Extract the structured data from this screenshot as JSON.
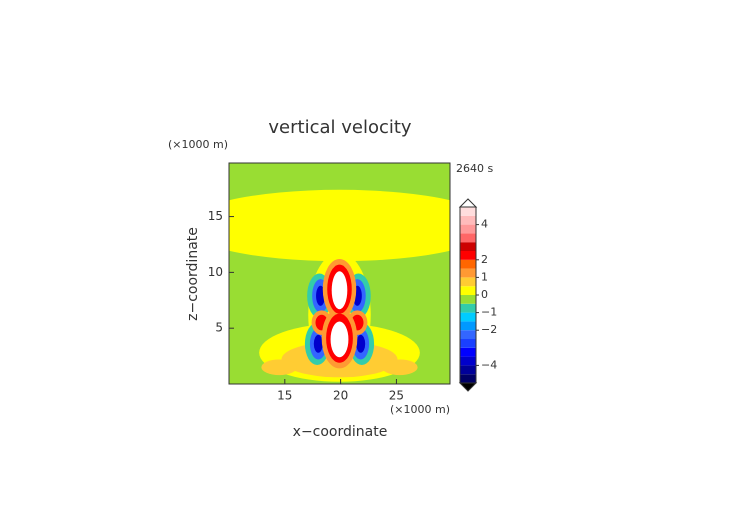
{
  "chart_data": {
    "type": "contour",
    "title": "vertical velocity",
    "xlabel": "x−coordinate",
    "ylabel": "z−coordinate",
    "x_unit": "(×1000 m)",
    "y_unit": "(×1000 m)",
    "time_label": "2640 s",
    "xlim": [
      10,
      29.8
    ],
    "ylim": [
      0,
      19.8
    ],
    "xticks": [
      15,
      20,
      25
    ],
    "yticks": [
      5,
      10,
      15
    ],
    "background_value": -0.25,
    "levels": [
      -5,
      -4.5,
      -4,
      -3.5,
      -3,
      -2.5,
      -2,
      -1.5,
      -1,
      -0.5,
      0,
      0.5,
      1,
      1.5,
      2,
      2.5,
      3,
      3.5,
      4,
      4.5,
      5
    ],
    "colors": [
      "#000066",
      "#000099",
      "#0000cc",
      "#0000ff",
      "#1a40ff",
      "#3366ff",
      "#0099ff",
      "#00ccff",
      "#33ccaa",
      "#99dd33",
      "#ffff00",
      "#ffcc33",
      "#ff9933",
      "#ff6600",
      "#ff0000",
      "#cc0000",
      "#ff6666",
      "#ff9999",
      "#ffbbbb",
      "#ffdddd"
    ],
    "over_color": "#ffffff",
    "under_color": "#000000",
    "colorbar_ticks": [
      {
        "value": -4,
        "label": "−4"
      },
      {
        "value": -2,
        "label": "−2"
      },
      {
        "value": -1,
        "label": "−1"
      },
      0,
      1,
      2,
      4
    ],
    "features": [
      {
        "value": 0.25,
        "x": 19.9,
        "z": 14.2,
        "rx": 14,
        "rz": 3.2
      },
      {
        "value": 0.25,
        "x": 19.9,
        "z": 2.8,
        "rx": 7.2,
        "rz": 2.6
      },
      {
        "value": 0.25,
        "x": 19.9,
        "z": 6.2,
        "rx": 2.8,
        "rz": 5.6
      },
      {
        "value": 0.75,
        "x": 19.9,
        "z": 2.2,
        "rx": 5.2,
        "rz": 1.6
      },
      {
        "value": 0.75,
        "x": 14.5,
        "z": 1.5,
        "rx": 1.6,
        "rz": 0.7
      },
      {
        "value": 0.75,
        "x": 25.3,
        "z": 1.5,
        "rx": 1.6,
        "rz": 0.7
      },
      {
        "value": -0.75,
        "x": 18.1,
        "z": 7.9,
        "rx": 1.1,
        "rz": 2.0
      },
      {
        "value": -0.75,
        "x": 21.6,
        "z": 7.9,
        "rx": 1.1,
        "rz": 2.0
      },
      {
        "value": -0.75,
        "x": 17.9,
        "z": 3.6,
        "rx": 1.1,
        "rz": 1.9
      },
      {
        "value": -0.75,
        "x": 21.9,
        "z": 3.6,
        "rx": 1.1,
        "rz": 1.9
      },
      {
        "value": -2.25,
        "x": 18.2,
        "z": 7.9,
        "rx": 0.75,
        "rz": 1.5
      },
      {
        "value": -2.25,
        "x": 21.5,
        "z": 7.9,
        "rx": 0.75,
        "rz": 1.5
      },
      {
        "value": -2.25,
        "x": 18.0,
        "z": 3.6,
        "rx": 0.75,
        "rz": 1.4
      },
      {
        "value": -2.25,
        "x": 21.8,
        "z": 3.6,
        "rx": 0.75,
        "rz": 1.4
      },
      {
        "value": -3.75,
        "x": 18.2,
        "z": 7.9,
        "rx": 0.4,
        "rz": 0.9
      },
      {
        "value": -3.75,
        "x": 21.5,
        "z": 7.9,
        "rx": 0.4,
        "rz": 0.9
      },
      {
        "value": -3.75,
        "x": 18.0,
        "z": 3.6,
        "rx": 0.4,
        "rz": 0.8
      },
      {
        "value": -3.75,
        "x": 21.8,
        "z": 3.6,
        "rx": 0.4,
        "rz": 0.8
      },
      {
        "value": 1.25,
        "x": 18.3,
        "z": 5.5,
        "rx": 0.9,
        "rz": 1.1
      },
      {
        "value": 1.25,
        "x": 21.5,
        "z": 5.5,
        "rx": 0.9,
        "rz": 1.1
      },
      {
        "value": 2.25,
        "x": 18.3,
        "z": 5.5,
        "rx": 0.55,
        "rz": 0.7
      },
      {
        "value": 2.25,
        "x": 21.5,
        "z": 5.5,
        "rx": 0.55,
        "rz": 0.7
      },
      {
        "value": 1.25,
        "x": 19.9,
        "z": 8.5,
        "rx": 1.5,
        "rz": 2.7
      },
      {
        "value": 1.25,
        "x": 19.9,
        "z": 4.1,
        "rx": 1.6,
        "rz": 2.7
      },
      {
        "value": 2.25,
        "x": 19.9,
        "z": 8.5,
        "rx": 1.1,
        "rz": 2.2
      },
      {
        "value": 2.25,
        "x": 19.9,
        "z": 4.1,
        "rx": 1.2,
        "rz": 2.2
      },
      {
        "value": 5.5,
        "x": 19.9,
        "z": 8.4,
        "rx": 0.7,
        "rz": 1.7
      },
      {
        "value": 5.5,
        "x": 19.9,
        "z": 4.0,
        "rx": 0.8,
        "rz": 1.6
      }
    ]
  }
}
